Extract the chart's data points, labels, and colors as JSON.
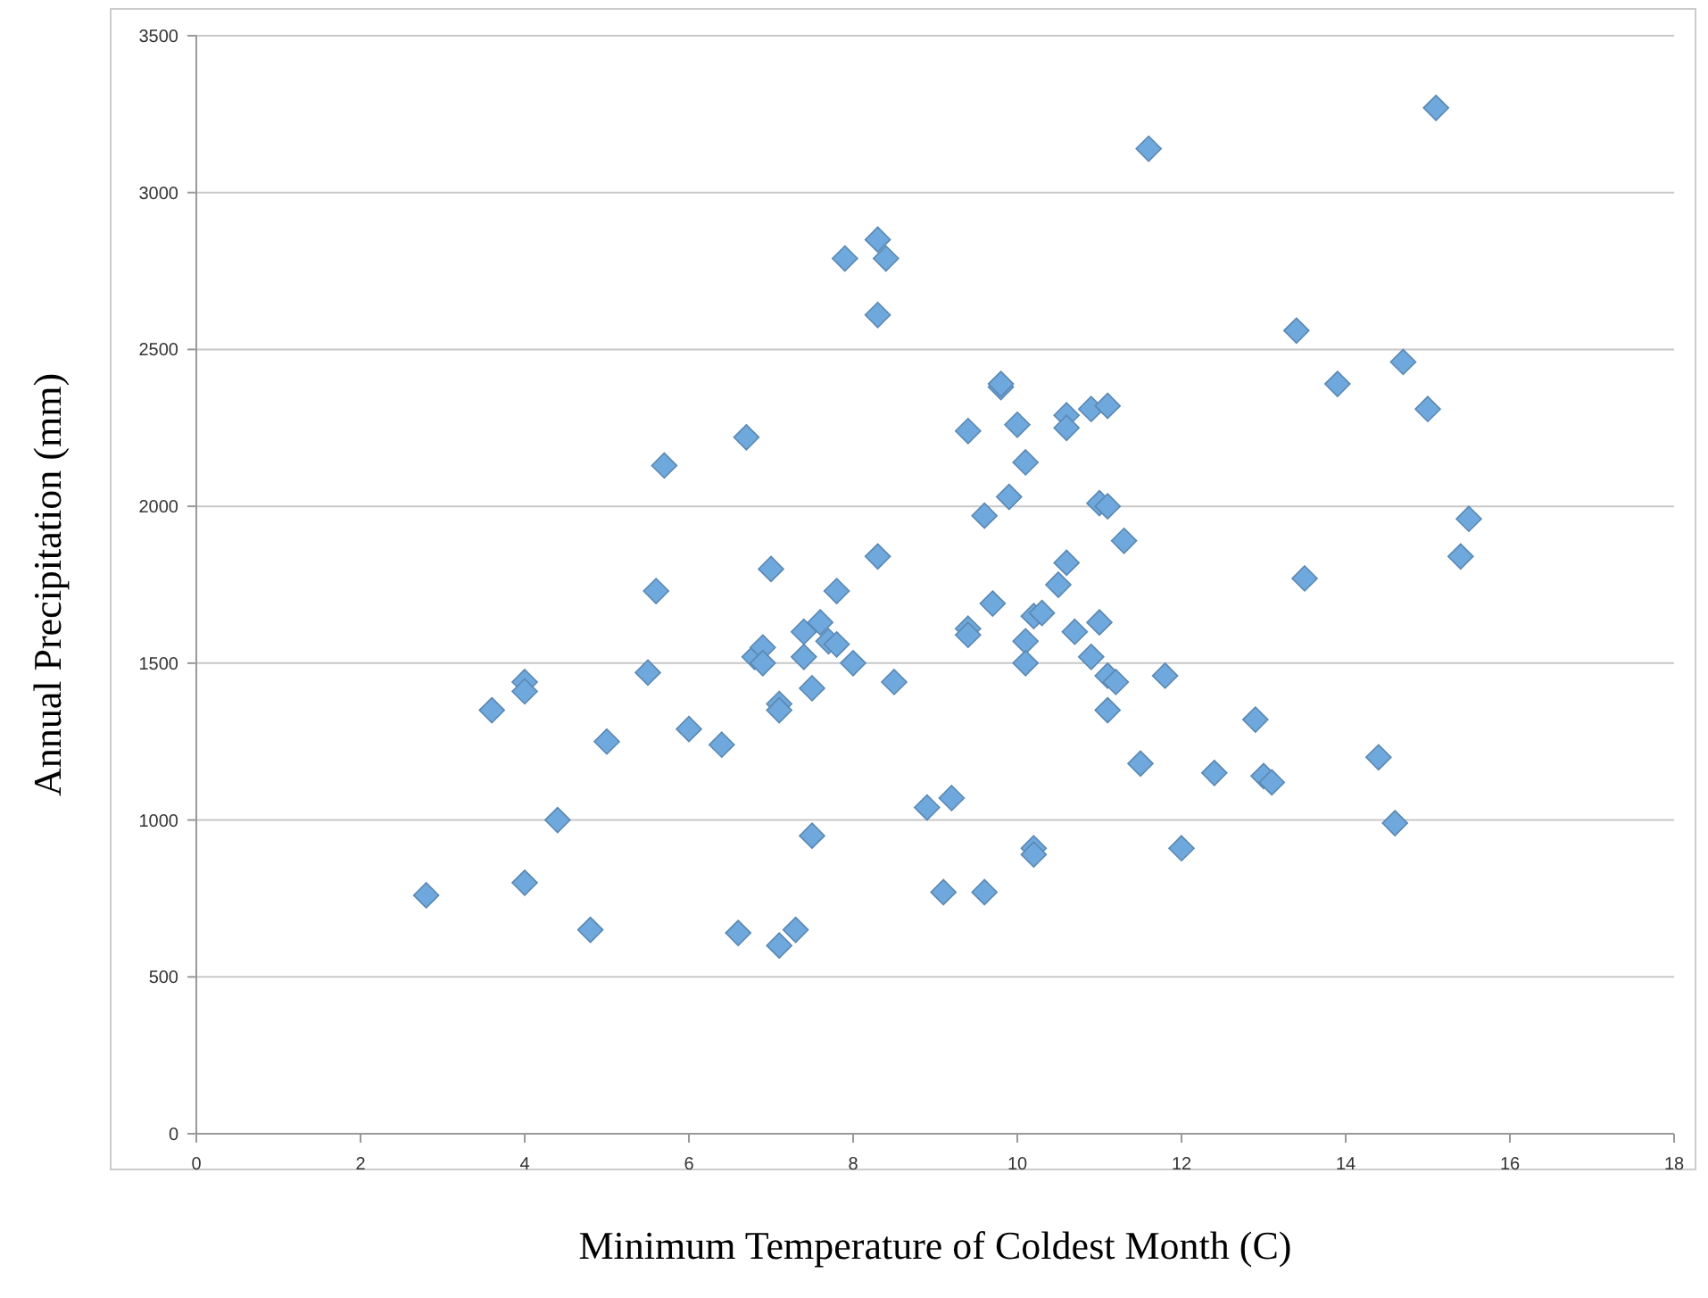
{
  "chart_data": {
    "type": "scatter",
    "xlabel": "Minimum Temperature of Coldest Month (C)",
    "ylabel": "Annual Precipitation (mm)",
    "xlim": [
      0,
      18
    ],
    "xticks": [
      0,
      2,
      4,
      6,
      8,
      10,
      12,
      14,
      16,
      18
    ],
    "ylim": [
      0,
      3500
    ],
    "yticks": [
      0,
      500,
      1000,
      1500,
      2000,
      2500,
      3000,
      3500
    ],
    "grid": "y",
    "marker": "diamond",
    "x": [
      2.8,
      3.6,
      4.0,
      4.0,
      4.0,
      4.4,
      4.8,
      5.0,
      5.5,
      5.6,
      5.7,
      6.0,
      6.4,
      6.6,
      6.7,
      6.8,
      6.9,
      6.9,
      7.0,
      7.1,
      7.1,
      7.1,
      7.3,
      7.4,
      7.4,
      7.5,
      7.5,
      7.6,
      7.7,
      7.8,
      7.8,
      7.9,
      8.0,
      8.3,
      8.3,
      8.3,
      8.4,
      8.5,
      8.9,
      9.1,
      9.2,
      9.4,
      9.4,
      9.4,
      9.6,
      9.6,
      9.7,
      9.8,
      9.8,
      9.9,
      10.0,
      10.1,
      10.1,
      10.1,
      10.2,
      10.2,
      10.2,
      10.3,
      10.5,
      10.6,
      10.6,
      10.6,
      10.7,
      10.9,
      10.9,
      11.0,
      11.0,
      11.1,
      11.1,
      11.1,
      11.1,
      11.2,
      11.3,
      11.5,
      11.6,
      11.8,
      12.0,
      12.4,
      12.9,
      13.0,
      13.1,
      13.4,
      13.5,
      13.9,
      14.4,
      14.6,
      14.7,
      15.0,
      15.1,
      15.4,
      15.5
    ],
    "series": [
      {
        "color": "#6fa8dc",
        "values": [
          760,
          1350,
          1440,
          1410,
          800,
          1000,
          650,
          1250,
          1470,
          1730,
          2130,
          1290,
          1240,
          640,
          2220,
          1520,
          1550,
          1500,
          1800,
          1370,
          1350,
          600,
          650,
          1600,
          1520,
          1420,
          950,
          1630,
          1570,
          1560,
          1730,
          2790,
          1500,
          2850,
          2610,
          1840,
          2790,
          1440,
          1040,
          770,
          1070,
          2240,
          1610,
          1590,
          1970,
          770,
          1690,
          2380,
          2390,
          2030,
          2260,
          2140,
          1570,
          1500,
          1650,
          910,
          890,
          1660,
          1750,
          2290,
          2250,
          1820,
          1600,
          2310,
          1520,
          2010,
          1630,
          2320,
          2000,
          1460,
          1350,
          1440,
          1890,
          1180,
          3140,
          1460,
          910,
          1150,
          1320,
          1140,
          1120,
          2560,
          1770,
          2390,
          1200,
          990,
          2460,
          2310,
          3270,
          1840,
          1960
        ]
      }
    ]
  }
}
